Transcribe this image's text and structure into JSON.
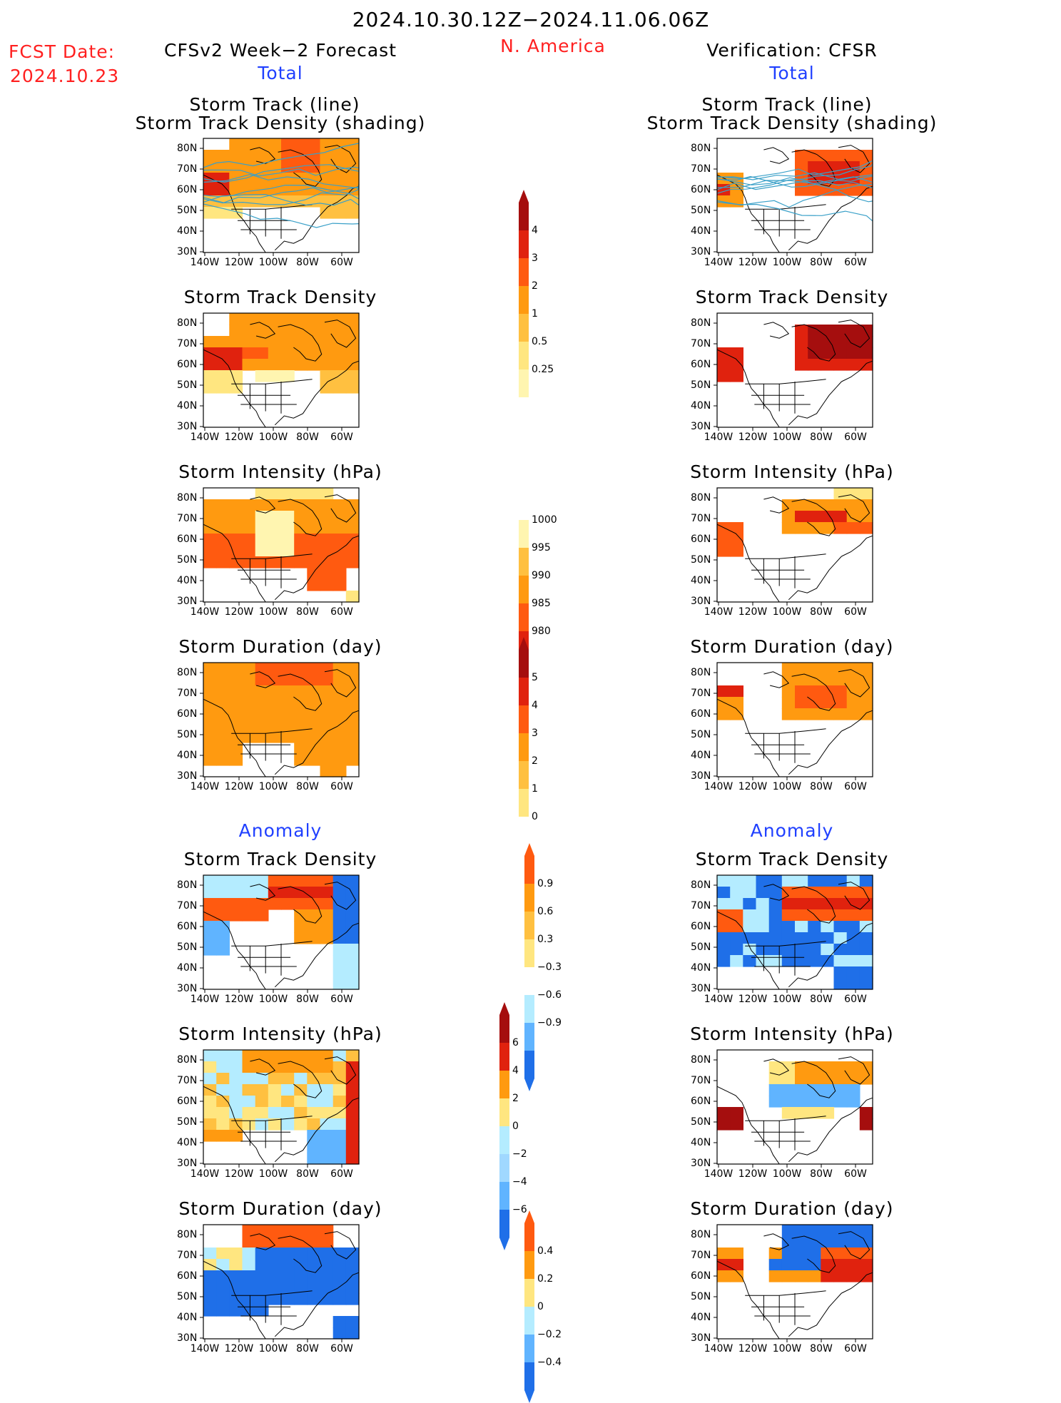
{
  "header": {
    "date_range": "2024.10.30.12Z−2024.11.06.06Z",
    "fcst_label": "FCST Date:",
    "fcst_date": "2024.10.23",
    "forecast_title": "CFSv2 Week−2 Forecast",
    "region": "N. America",
    "verification_title": "Verification: CFSR"
  },
  "sections": {
    "total_left": "Total",
    "total_right": "Total",
    "anomaly_left": "Anomaly",
    "anomaly_right": "Anomaly"
  },
  "panel_titles": {
    "track_line": "Storm Track (line)",
    "track_density_shading": "Storm Track Density (shading)",
    "track_density": "Storm Track Density",
    "intensity": "Storm Intensity (hPa)",
    "duration": "Storm Duration (day)"
  },
  "axes": {
    "lat_labels": [
      "80N",
      "70N",
      "60N",
      "50N",
      "40N",
      "30N"
    ],
    "lon_labels": [
      "140W",
      "120W",
      "100W",
      "80W",
      "60W"
    ]
  },
  "colorbars": {
    "density": [
      "4",
      "3",
      "2",
      "1",
      "0.5",
      "0.25"
    ],
    "intensity": [
      "1000",
      "995",
      "990",
      "985",
      "980"
    ],
    "duration": [
      "5",
      "4",
      "3",
      "2",
      "1",
      "0"
    ],
    "density_anom": [
      "0.9",
      "0.6",
      "0.3",
      "−0.3",
      "−0.6",
      "−0.9"
    ],
    "intensity_anom": [
      "6",
      "4",
      "2",
      "0",
      "−2",
      "−4",
      "−6"
    ],
    "duration_anom": [
      "0.4",
      "0.2",
      "0",
      "−0.2",
      "−0.4"
    ]
  },
  "colors": {
    "red_text": "#ff2020",
    "blue_text": "#2040ff",
    "darkred": "#a50e0e",
    "red": "#e0220e",
    "orangered": "#ff5a10",
    "orange": "#ff9a10",
    "lightorange": "#ffc040",
    "yellow": "#ffe680",
    "paleyellow": "#fff5b0",
    "lightblue": "#b4ecff",
    "skyblue": "#60b4ff",
    "blue": "#1f6fe8"
  }
}
